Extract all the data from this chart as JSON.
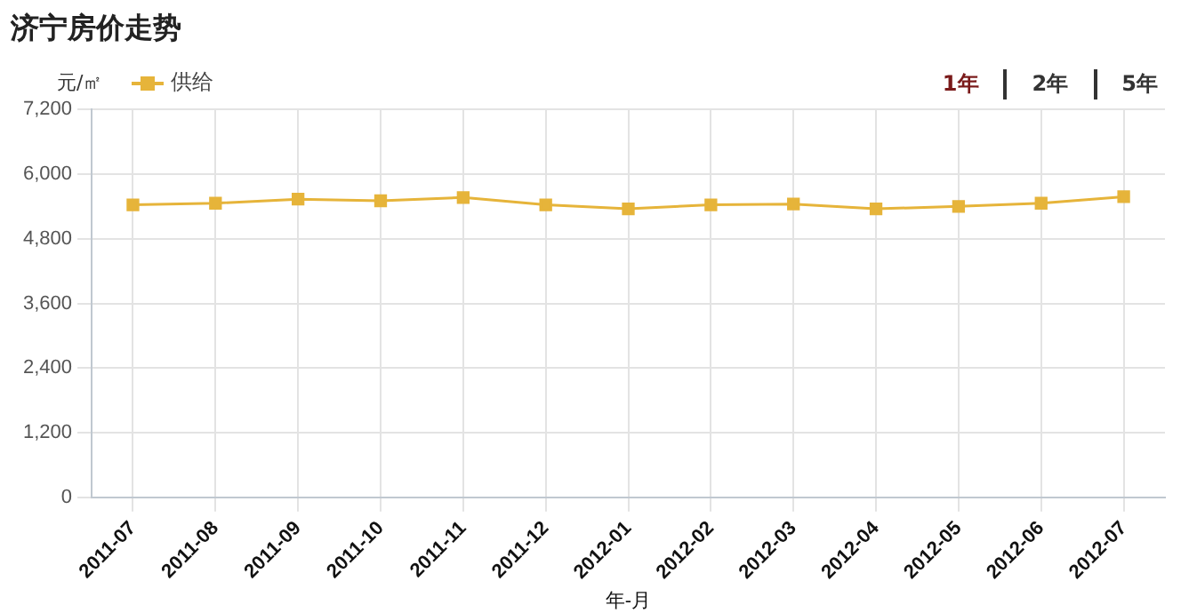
{
  "chart_data": {
    "type": "line",
    "title": "济宁房价走势",
    "xlabel": "年-月",
    "ylabel": "元/㎡",
    "categories": [
      "2011-07",
      "2011-08",
      "2011-09",
      "2011-10",
      "2011-11",
      "2011-12",
      "2012-01",
      "2012-02",
      "2012-03",
      "2012-04",
      "2012-05",
      "2012-06",
      "2012-07"
    ],
    "series": [
      {
        "name": "供给",
        "color": "#e6b43a",
        "values": [
          5430,
          5460,
          5535,
          5505,
          5565,
          5430,
          5355,
          5430,
          5445,
          5355,
          5400,
          5460,
          5580
        ]
      }
    ],
    "ylim": [
      0,
      7200
    ],
    "yticks": [
      {
        "value": 0,
        "label": "0"
      },
      {
        "value": 1200,
        "label": "1,200"
      },
      {
        "value": 2400,
        "label": "2,400"
      },
      {
        "value": 3600,
        "label": "3,600"
      },
      {
        "value": 4800,
        "label": "4,800"
      },
      {
        "value": 6000,
        "label": "6,000"
      },
      {
        "value": 7200,
        "label": "7,200"
      }
    ],
    "grid": true,
    "legend": "top left",
    "marker": "square",
    "line_style": "solid",
    "annotations": [
      "1年",
      "2年",
      "5年"
    ]
  }
}
